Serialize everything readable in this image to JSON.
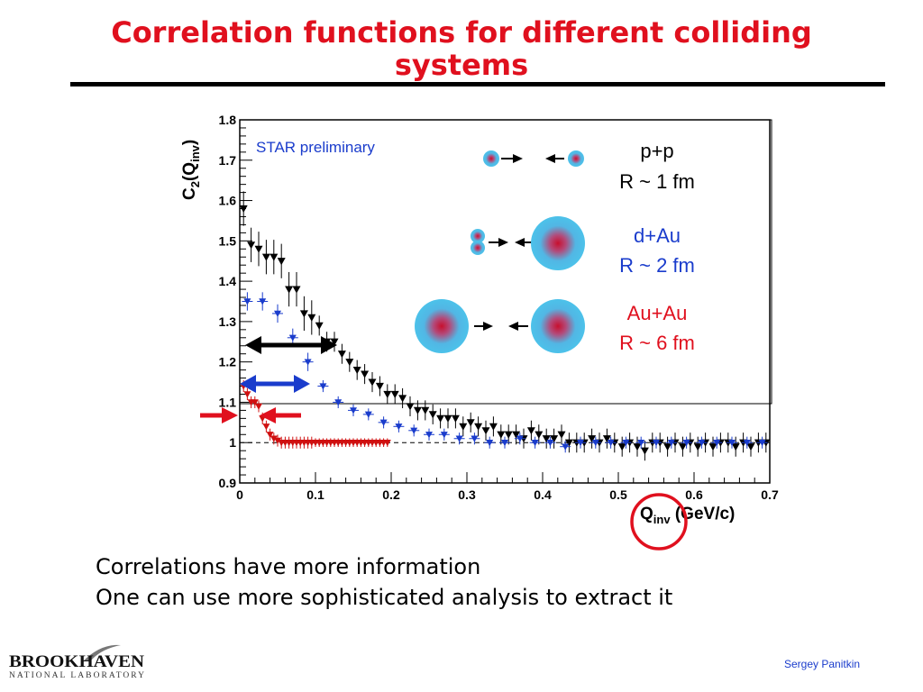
{
  "slide": {
    "title_line1": "Correlation functions for different colliding",
    "title_line2": "systems",
    "bullets": [
      "Correlations have more information",
      "One can use more sophisticated analysis to extract it"
    ],
    "author": "Sergey  Panitkin",
    "logo": {
      "name": "BROOKHAVEN",
      "subtitle": "NATIONAL LABORATORY"
    }
  },
  "chart_data": {
    "type": "scatter",
    "watermark": "STAR preliminary",
    "ylabel": {
      "main": "C",
      "sub1": "2",
      "paren": "(Q",
      "sub2": "inv",
      "close": ")"
    },
    "xlabel": {
      "main": "Q",
      "sub": "inv",
      "rest": " (GeV/c)"
    },
    "xlim": [
      0,
      0.7
    ],
    "ylim": [
      0.9,
      1.8
    ],
    "xticks": [
      "0",
      "0.1",
      "0.2",
      "0.3",
      "0.4",
      "0.5",
      "0.6",
      "0.7"
    ],
    "yticks": [
      "0.9",
      "1",
      "1.1",
      "1.2",
      "1.3",
      "1.4",
      "1.5",
      "1.6",
      "1.7",
      "1.8"
    ],
    "reference_line": 1.0,
    "colors": {
      "pp": "#000000",
      "dAu": "#1a3ccc",
      "AuAu": "#d01010",
      "title": "#e0101e",
      "ball": "#4cc2ea"
    },
    "series": [
      {
        "name": "p+p",
        "x": [
          0.005,
          0.015,
          0.025,
          0.035,
          0.045,
          0.055,
          0.065,
          0.075,
          0.085,
          0.095,
          0.105,
          0.115,
          0.125,
          0.135,
          0.145,
          0.155,
          0.165,
          0.175,
          0.185,
          0.195,
          0.205,
          0.215,
          0.225,
          0.235,
          0.245,
          0.255,
          0.265,
          0.275,
          0.285,
          0.295,
          0.305,
          0.315,
          0.325,
          0.335,
          0.345,
          0.355,
          0.365,
          0.375,
          0.385,
          0.395,
          0.405,
          0.415,
          0.425,
          0.435,
          0.445,
          0.455,
          0.465,
          0.475,
          0.485,
          0.495,
          0.505,
          0.515,
          0.525,
          0.535,
          0.545,
          0.555,
          0.565,
          0.575,
          0.585,
          0.595,
          0.605,
          0.615,
          0.625,
          0.635,
          0.645,
          0.655,
          0.665,
          0.675,
          0.685,
          0.695
        ],
        "y": [
          1.58,
          1.49,
          1.48,
          1.46,
          1.46,
          1.45,
          1.38,
          1.38,
          1.32,
          1.31,
          1.29,
          1.25,
          1.25,
          1.22,
          1.2,
          1.18,
          1.17,
          1.15,
          1.14,
          1.12,
          1.12,
          1.11,
          1.09,
          1.08,
          1.08,
          1.07,
          1.06,
          1.06,
          1.06,
          1.04,
          1.05,
          1.04,
          1.03,
          1.04,
          1.02,
          1.02,
          1.02,
          1.01,
          1.03,
          1.02,
          1.01,
          1.01,
          1.02,
          1.0,
          1.0,
          1.0,
          1.01,
          1.0,
          1.01,
          1.0,
          0.99,
          1.0,
          0.99,
          0.98,
          1.0,
          1.0,
          0.99,
          1.0,
          0.99,
          1.0,
          0.99,
          1.0,
          0.99,
          1.0,
          1.0,
          0.99,
          1.0,
          0.99,
          1.0,
          1.0
        ]
      },
      {
        "name": "d+Au",
        "x": [
          0.01,
          0.03,
          0.05,
          0.07,
          0.09,
          0.11,
          0.13,
          0.15,
          0.17,
          0.19,
          0.21,
          0.23,
          0.25,
          0.27,
          0.29,
          0.31,
          0.33,
          0.35,
          0.37,
          0.39,
          0.41,
          0.43,
          0.45,
          0.47,
          0.49,
          0.51,
          0.53,
          0.55,
          0.57,
          0.59,
          0.61,
          0.63,
          0.65,
          0.67,
          0.69
        ],
        "y": [
          1.35,
          1.35,
          1.32,
          1.26,
          1.2,
          1.14,
          1.1,
          1.08,
          1.07,
          1.05,
          1.04,
          1.03,
          1.02,
          1.02,
          1.01,
          1.01,
          1.0,
          1.0,
          1.01,
          1.0,
          1.0,
          0.99,
          1.0,
          1.0,
          1.0,
          1.0,
          1.0,
          1.0,
          1.0,
          1.0,
          1.0,
          1.0,
          1.0,
          1.0,
          1.0
        ]
      },
      {
        "name": "Au+Au",
        "x": [
          0.005,
          0.01,
          0.015,
          0.02,
          0.025,
          0.03,
          0.035,
          0.04,
          0.045,
          0.05,
          0.055,
          0.06,
          0.065,
          0.07,
          0.075,
          0.08,
          0.085,
          0.09,
          0.095,
          0.1,
          0.105,
          0.11,
          0.115,
          0.12,
          0.125,
          0.13,
          0.135,
          0.14,
          0.145,
          0.15,
          0.155,
          0.16,
          0.165,
          0.17,
          0.175,
          0.18,
          0.185,
          0.19,
          0.195
        ],
        "y": [
          1.14,
          1.12,
          1.1,
          1.1,
          1.09,
          1.06,
          1.04,
          1.02,
          1.01,
          1.005,
          1.0,
          1.0,
          1.0,
          1.0,
          1.0,
          1.0,
          1.0,
          1.0,
          1.0,
          1.0,
          1.0,
          1.0,
          1.0,
          1.0,
          1.0,
          1.0,
          1.0,
          1.0,
          1.0,
          1.0,
          1.0,
          1.0,
          1.0,
          1.0,
          1.0,
          1.0,
          1.0,
          1.0,
          1.0
        ]
      }
    ],
    "systems": [
      {
        "name": "p+p",
        "radius": "R ~ 1 fm"
      },
      {
        "name": "d+Au",
        "radius": "R ~ 2 fm"
      },
      {
        "name": "Au+Au",
        "radius": "R ~ 6 fm"
      }
    ]
  }
}
